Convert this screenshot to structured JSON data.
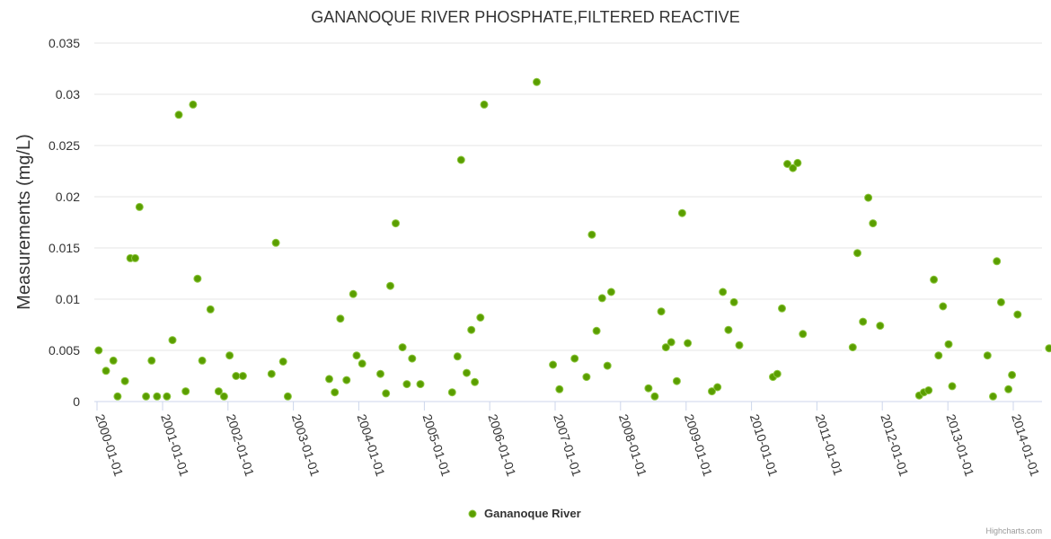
{
  "chart_data": {
    "type": "scatter",
    "title": "GANANOQUE RIVER PHOSPHATE,FILTERED REACTIVE",
    "xlabel": "",
    "ylabel": "Measurements (mg/L)",
    "xlim": [
      "2000-01-01",
      "2014-01-01"
    ],
    "ylim": [
      0,
      0.035
    ],
    "y_ticks": [
      "0",
      "0.005",
      "0.01",
      "0.015",
      "0.02",
      "0.025",
      "0.03",
      "0.035"
    ],
    "x_ticks": [
      "2000-01-01",
      "2001-01-01",
      "2002-01-01",
      "2003-01-01",
      "2004-01-01",
      "2005-01-01",
      "2006-01-01",
      "2007-01-01",
      "2008-01-01",
      "2009-01-01",
      "2010-01-01",
      "2011-01-01",
      "2012-01-01",
      "2013-01-01",
      "2014-01-01"
    ],
    "grid": true,
    "legend_position": "bottom-center",
    "credit": "Highcharts.com",
    "series": [
      {
        "name": "Gananoque River",
        "color": "#5a9e00",
        "points": [
          [
            "2000-01-10",
            0.005
          ],
          [
            "2000-02-20",
            0.003
          ],
          [
            "2000-04-01",
            0.004
          ],
          [
            "2000-04-25",
            0.0005
          ],
          [
            "2000-06-05",
            0.002
          ],
          [
            "2000-07-05",
            0.014
          ],
          [
            "2000-08-01",
            0.014
          ],
          [
            "2000-08-25",
            0.019
          ],
          [
            "2000-10-01",
            0.0005
          ],
          [
            "2000-11-01",
            0.004
          ],
          [
            "2000-12-01",
            0.0005
          ],
          [
            "2001-01-25",
            0.0005
          ],
          [
            "2001-02-25",
            0.006
          ],
          [
            "2001-04-01",
            0.028
          ],
          [
            "2001-05-10",
            0.001
          ],
          [
            "2001-06-20",
            0.029
          ],
          [
            "2001-07-15",
            0.012
          ],
          [
            "2001-08-10",
            0.004
          ],
          [
            "2001-09-25",
            0.009
          ],
          [
            "2001-11-10",
            0.001
          ],
          [
            "2001-12-10",
            0.0005
          ],
          [
            "2002-01-10",
            0.0045
          ],
          [
            "2002-02-15",
            0.0025
          ],
          [
            "2002-03-25",
            0.0025
          ],
          [
            "2002-09-01",
            0.0027
          ],
          [
            "2002-09-25",
            0.0155
          ],
          [
            "2002-11-05",
            0.0039
          ],
          [
            "2002-12-01",
            0.0005
          ],
          [
            "2003-07-20",
            0.0022
          ],
          [
            "2003-08-20",
            0.0009
          ],
          [
            "2003-09-20",
            0.0081
          ],
          [
            "2003-10-25",
            0.0021
          ],
          [
            "2003-12-01",
            0.0105
          ],
          [
            "2003-12-20",
            0.0045
          ],
          [
            "2004-01-20",
            0.0037
          ],
          [
            "2004-05-01",
            0.0027
          ],
          [
            "2004-06-01",
            0.0008
          ],
          [
            "2004-06-25",
            0.0113
          ],
          [
            "2004-07-25",
            0.0174
          ],
          [
            "2004-09-01",
            0.0053
          ],
          [
            "2004-09-25",
            0.0017
          ],
          [
            "2004-10-25",
            0.0042
          ],
          [
            "2004-12-10",
            0.0017
          ],
          [
            "2005-06-05",
            0.0009
          ],
          [
            "2005-07-05",
            0.0044
          ],
          [
            "2005-07-25",
            0.0236
          ],
          [
            "2005-08-25",
            0.0028
          ],
          [
            "2005-09-20",
            0.007
          ],
          [
            "2005-10-10",
            0.0019
          ],
          [
            "2005-11-10",
            0.0082
          ],
          [
            "2005-12-01",
            0.029
          ],
          [
            "2006-09-20",
            0.0312
          ],
          [
            "2006-12-20",
            0.0036
          ],
          [
            "2007-01-25",
            0.0012
          ],
          [
            "2007-04-20",
            0.0042
          ],
          [
            "2007-06-25",
            0.0024
          ],
          [
            "2007-07-25",
            0.0163
          ],
          [
            "2007-08-20",
            0.0069
          ],
          [
            "2007-09-20",
            0.0101
          ],
          [
            "2007-10-20",
            0.0035
          ],
          [
            "2007-11-10",
            0.0107
          ],
          [
            "2008-06-05",
            0.0013
          ],
          [
            "2008-07-10",
            0.0005
          ],
          [
            "2008-08-15",
            0.0088
          ],
          [
            "2008-09-10",
            0.0053
          ],
          [
            "2008-10-10",
            0.0058
          ],
          [
            "2008-11-10",
            0.002
          ],
          [
            "2008-12-10",
            0.0184
          ],
          [
            "2009-01-10",
            0.0057
          ],
          [
            "2009-05-25",
            0.001
          ],
          [
            "2009-06-25",
            0.0014
          ],
          [
            "2009-07-25",
            0.0107
          ],
          [
            "2009-08-25",
            0.007
          ],
          [
            "2009-09-25",
            0.0097
          ],
          [
            "2009-10-25",
            0.0055
          ],
          [
            "2010-05-01",
            0.0024
          ],
          [
            "2010-05-25",
            0.0027
          ],
          [
            "2010-06-20",
            0.0091
          ],
          [
            "2010-07-20",
            0.0232
          ],
          [
            "2010-08-20",
            0.0228
          ],
          [
            "2010-09-15",
            0.0233
          ],
          [
            "2010-10-15",
            0.0066
          ],
          [
            "2011-07-20",
            0.0053
          ],
          [
            "2011-08-15",
            0.0145
          ],
          [
            "2011-09-15",
            0.0078
          ],
          [
            "2011-10-15",
            0.0199
          ],
          [
            "2011-11-10",
            0.0174
          ],
          [
            "2011-12-20",
            0.0074
          ],
          [
            "2012-07-25",
            0.0006
          ],
          [
            "2012-08-20",
            0.0009
          ],
          [
            "2012-09-15",
            0.0011
          ],
          [
            "2012-10-15",
            0.0119
          ],
          [
            "2012-11-10",
            0.0045
          ],
          [
            "2012-12-05",
            0.0093
          ],
          [
            "2013-01-05",
            0.0056
          ],
          [
            "2013-01-25",
            0.0015
          ],
          [
            "2013-08-10",
            0.0045
          ],
          [
            "2013-09-10",
            0.0005
          ],
          [
            "2013-10-01",
            0.0137
          ],
          [
            "2013-10-25",
            0.0097
          ],
          [
            "2013-12-05",
            0.0012
          ],
          [
            "2013-12-25",
            0.0026
          ],
          [
            "2014-01-25",
            0.0085
          ],
          [
            "2014-07-20",
            0.0052
          ]
        ]
      }
    ]
  }
}
